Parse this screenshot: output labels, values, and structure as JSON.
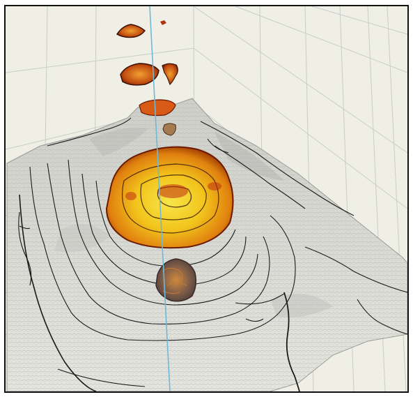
{
  "image": {
    "subject": "3d-terrain-visualization",
    "background_color": "#efefe6",
    "grid_color": "#c9ccc8",
    "axis_color": "#6fb8d8",
    "surface_color": "#d9d9d4",
    "contour_color": "#1a1a1a",
    "blob_colors": {
      "outer": "#8a2a00",
      "mid": "#e07a10",
      "inner": "#f2d21c",
      "highlight": "#f7e54a"
    }
  }
}
